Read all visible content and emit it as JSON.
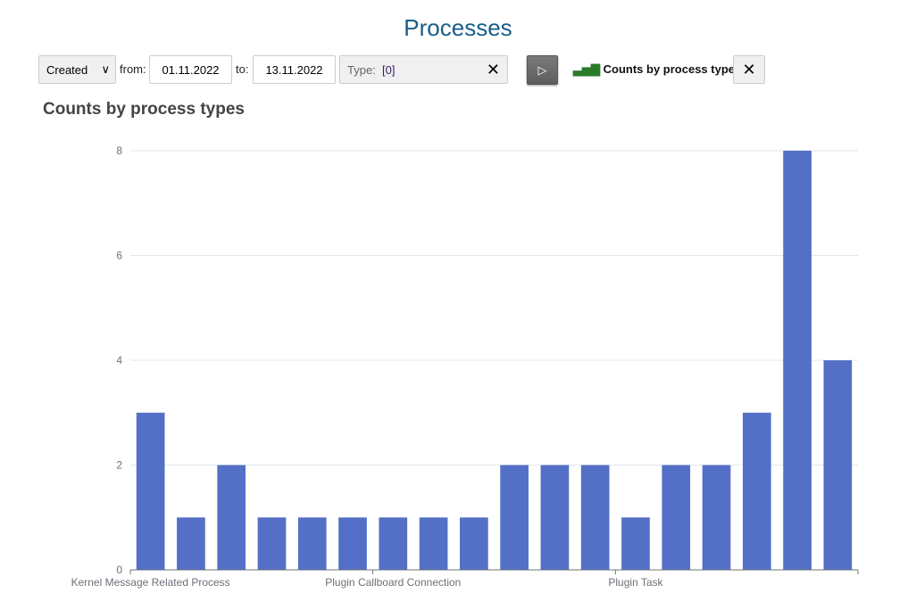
{
  "page_title": "Processes",
  "toolbar": {
    "date_field": "Created",
    "from_label": "from:",
    "from_value": "01.11.2022",
    "to_label": "to:",
    "to_value": "13.11.2022",
    "type_label": "Type:",
    "type_value": "[0]",
    "chart_link": "Counts by process types",
    "chart_icon": "bar-chart-icon",
    "run_icon": "play-icon",
    "close_icon": "close-icon"
  },
  "chart_data": {
    "type": "bar",
    "title": "Counts by process types",
    "categories": [
      "Kernel Message Related Process",
      "",
      "",
      "",
      "",
      "",
      "Plugin Callboard Connection",
      "",
      "",
      "",
      "",
      "",
      "Plugin Task",
      "",
      "",
      "",
      "",
      ""
    ],
    "values": [
      3,
      1,
      2,
      1,
      1,
      1,
      1,
      1,
      1,
      2,
      2,
      2,
      1,
      2,
      2,
      3,
      8,
      4
    ],
    "ylim": [
      0,
      8
    ],
    "yticks": [
      0,
      2,
      4,
      6,
      8
    ],
    "grid": true,
    "bar_color": "#5470c6"
  }
}
